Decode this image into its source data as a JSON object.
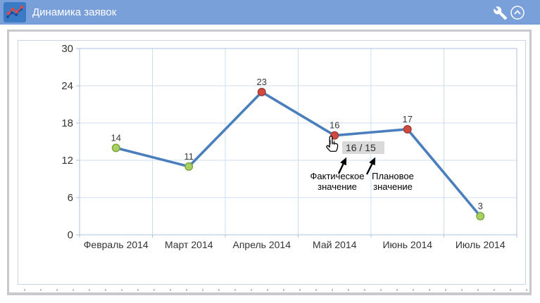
{
  "header": {
    "title": "Динамика заявок",
    "tile_icon": "mini-line-chart-icon",
    "wrench_icon": "wrench",
    "collapse_icon": "chevron-up-in-circle"
  },
  "colors": {
    "header_bg": "#7aa0d9",
    "header_tile_bg": "#3b7ac4",
    "line": "#4a7ebc",
    "marker_red": "#d04a41",
    "marker_red_stroke": "#a03b34",
    "marker_green": "#a8d164",
    "marker_green_stroke": "#7ca23e",
    "grid": "#ccdcf0",
    "plot_border": "#a9c0e0",
    "chartbox_border": "#c5d6ee",
    "body_border": "#c9c9cd",
    "tooltip_bg": "#d9d9d9",
    "text": "#333333",
    "label_text": "#3a3a3a"
  },
  "chart_data": {
    "type": "line",
    "title": "Динамика заявок",
    "categories": [
      "Февраль 2014",
      "Март 2014",
      "Апрель 2014",
      "Май 2014",
      "Июнь 2014",
      "Июль 2014"
    ],
    "series": [
      {
        "name": "Фактическое значение",
        "values": [
          14,
          11,
          23,
          16,
          17,
          3
        ]
      }
    ],
    "point_colors": [
      "green",
      "green",
      "red",
      "red",
      "red",
      "green"
    ],
    "data_labels": [
      14,
      11,
      23,
      16,
      17,
      3
    ],
    "yticks": [
      0,
      6,
      12,
      18,
      24,
      30
    ],
    "ylim": [
      0,
      30
    ],
    "grid": true,
    "legend": "none",
    "hovered_point": {
      "category": "Май 2014",
      "actual": 16,
      "planned": 15
    }
  },
  "tooltip": {
    "text": "16 / 15"
  },
  "annotations": {
    "actual": "Фактическое значение",
    "planned": "Плановое значение"
  }
}
